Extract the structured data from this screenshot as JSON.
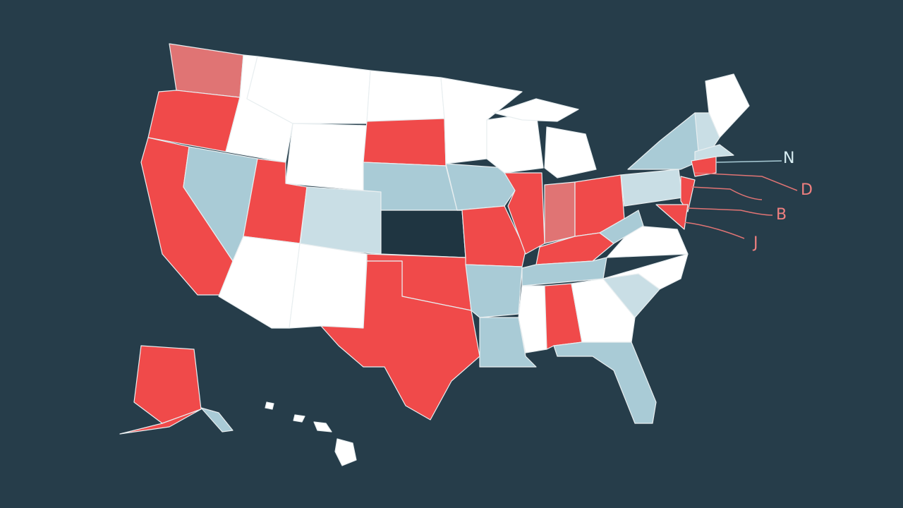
{
  "callouts": [
    {
      "label": "N"
    },
    {
      "label": "D"
    },
    {
      "label": "B"
    },
    {
      "label": "J"
    }
  ]
}
